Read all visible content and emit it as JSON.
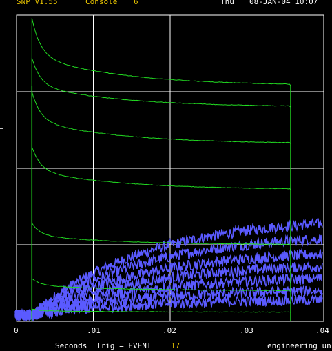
{
  "header": {
    "app_version": "SNP V1.55",
    "console_label": "Console",
    "console_number": "6",
    "day": "Thu",
    "datetime": "08-JAN-04 10:07"
  },
  "x_axis": {
    "ticks": [
      "0",
      ".01",
      ".02",
      ".03",
      ".04"
    ]
  },
  "footer": {
    "units_label": "Seconds",
    "trigger_label": "Trig = EVENT",
    "trigger_value": "17",
    "mode_label": "engineering un"
  },
  "colors": {
    "background": "#000000",
    "grid": "#ffffff",
    "green_trace": "#22dd22",
    "blue_trace": "#5a5aff",
    "header_text": "#e6c200"
  },
  "chart_data": {
    "type": "line",
    "x_range": [
      0,
      0.04
    ],
    "grid": true,
    "x_ticks": [
      0,
      0.01,
      0.02,
      0.03,
      0.04
    ],
    "series_groups": [
      {
        "color": "green",
        "pulse_start": 0.002,
        "pulse_end": 0.0357,
        "curves": [
          {
            "start_level": 0.99,
            "end_level": 0.77
          },
          {
            "start_level": 0.86,
            "end_level": 0.7
          },
          {
            "start_level": 0.75,
            "end_level": 0.58
          },
          {
            "start_level": 0.57,
            "end_level": 0.43
          },
          {
            "start_level": 0.32,
            "end_level": 0.25
          },
          {
            "start_level": 0.14,
            "end_level": 0.1
          },
          {
            "start_level": 0.04,
            "end_level": 0.03
          }
        ]
      },
      {
        "color": "blue",
        "noisy": true,
        "curves": [
          {
            "end_level": 0.3
          },
          {
            "end_level": 0.25
          },
          {
            "end_level": 0.2
          },
          {
            "end_level": 0.16
          },
          {
            "end_level": 0.12
          },
          {
            "end_level": 0.08
          },
          {
            "end_level": 0.05
          }
        ]
      }
    ]
  }
}
